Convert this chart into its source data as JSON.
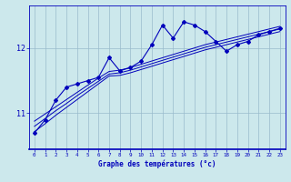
{
  "x": [
    0,
    1,
    2,
    3,
    4,
    5,
    6,
    7,
    8,
    9,
    10,
    11,
    12,
    13,
    14,
    15,
    16,
    17,
    18,
    19,
    20,
    21,
    22,
    23
  ],
  "temp": [
    10.7,
    10.9,
    11.2,
    11.4,
    11.45,
    11.5,
    11.55,
    11.85,
    11.65,
    11.7,
    11.8,
    12.05,
    12.35,
    12.15,
    12.4,
    12.35,
    12.25,
    12.1,
    11.95,
    12.05,
    12.1,
    12.2,
    12.25,
    12.3
  ],
  "reg1": [
    10.72,
    10.84,
    10.97,
    11.09,
    11.21,
    11.33,
    11.45,
    11.57,
    11.58,
    11.62,
    11.67,
    11.72,
    11.77,
    11.82,
    11.87,
    11.92,
    11.97,
    12.01,
    12.05,
    12.09,
    12.13,
    12.17,
    12.21,
    12.25
  ],
  "reg2": [
    10.8,
    10.92,
    11.04,
    11.15,
    11.27,
    11.38,
    11.49,
    11.6,
    11.62,
    11.66,
    11.71,
    11.76,
    11.81,
    11.86,
    11.91,
    11.96,
    12.01,
    12.05,
    12.09,
    12.13,
    12.17,
    12.21,
    12.25,
    12.29
  ],
  "reg3": [
    10.88,
    10.99,
    11.1,
    11.21,
    11.32,
    11.43,
    11.54,
    11.64,
    11.66,
    11.7,
    11.75,
    11.8,
    11.85,
    11.9,
    11.95,
    12.0,
    12.05,
    12.09,
    12.13,
    12.17,
    12.21,
    12.25,
    12.29,
    12.33
  ],
  "yticks": [
    11,
    12
  ],
  "ylim": [
    10.45,
    12.65
  ],
  "xlim": [
    -0.5,
    23.5
  ],
  "xlabel": "Graphe des températures (°c)",
  "bg_color": "#cce8ec",
  "line_color": "#0000bb",
  "grid_color": "#99bbcc",
  "xlabel_color": "#0000bb",
  "tick_color": "#0000bb"
}
